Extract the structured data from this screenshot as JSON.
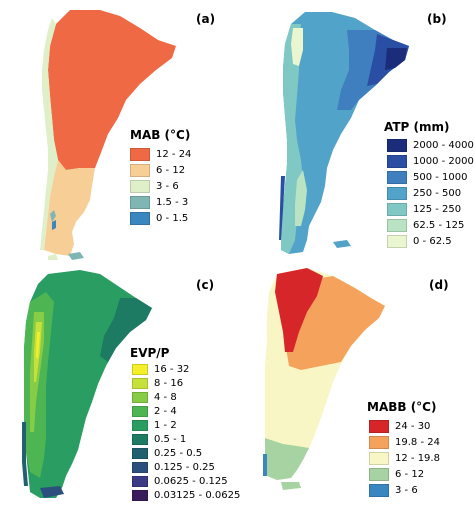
{
  "panels": [
    {
      "id": "a",
      "label": "(a)",
      "legend_title": "MAB (°C)",
      "legend": [
        {
          "label": "12 - 24",
          "color": "#ef6a44"
        },
        {
          "label": "6 - 12",
          "color": "#f7cf96"
        },
        {
          "label": "3 - 6",
          "color": "#dff0c8"
        },
        {
          "label": "1.5 - 3",
          "color": "#7fb6b3"
        },
        {
          "label": "0 - 1.5",
          "color": "#3a86c0"
        }
      ]
    },
    {
      "id": "b",
      "label": "(b)",
      "legend_title": "ATP (mm)",
      "legend": [
        {
          "label": "2000 - 4000",
          "color": "#1b2c7a"
        },
        {
          "label": "1000 - 2000",
          "color": "#2a4ea3"
        },
        {
          "label": "500 - 1000",
          "color": "#3f7fbf"
        },
        {
          "label": "250 - 500",
          "color": "#52a3c9"
        },
        {
          "label": "125 - 250",
          "color": "#7fc8c4"
        },
        {
          "label": "62.5 - 125",
          "color": "#b9e3c2"
        },
        {
          "label": "0 - 62.5",
          "color": "#e9f6cf"
        }
      ]
    },
    {
      "id": "c",
      "label": "(c)",
      "legend_title": "EVP/P",
      "legend": [
        {
          "label": "16 - 32",
          "color": "#f5ef2a"
        },
        {
          "label": "8 - 16",
          "color": "#c6e23a"
        },
        {
          "label": "4 - 8",
          "color": "#86cc46"
        },
        {
          "label": "2 - 4",
          "color": "#4db552"
        },
        {
          "label": "1 - 2",
          "color": "#2a9e62"
        },
        {
          "label": "0.5 - 1",
          "color": "#1d7a63"
        },
        {
          "label": "0.25 - 0.5",
          "color": "#22606f"
        },
        {
          "label": "0.125 - 0.25",
          "color": "#2d4f7d"
        },
        {
          "label": "0.0625 - 0.125",
          "color": "#3b3a83"
        },
        {
          "label": "0.03125 - 0.0625",
          "color": "#3a1c5c"
        }
      ]
    },
    {
      "id": "d",
      "label": "(d)",
      "legend_title": "MABB (°C)",
      "legend": [
        {
          "label": "24 - 30",
          "color": "#d7262a"
        },
        {
          "label": "19.8 - 24",
          "color": "#f5a35c"
        },
        {
          "label": "12 - 19.8",
          "color": "#f7f6c4"
        },
        {
          "label": "6 - 12",
          "color": "#a7d3a2"
        },
        {
          "label": "3 - 6",
          "color": "#3a86c0"
        }
      ]
    }
  ]
}
